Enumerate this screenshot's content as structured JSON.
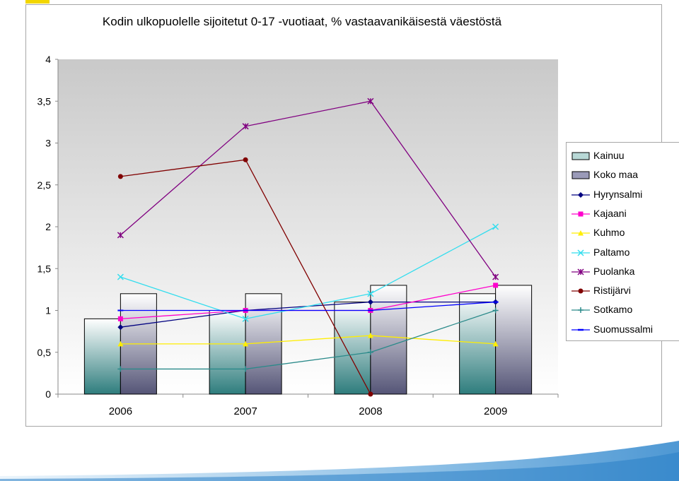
{
  "chart_data": {
    "type": "bar",
    "title": "Kodin ulkopuolelle sijoitetut 0-17 -vuotiaat, % vastaavanikäisestä väestöstä",
    "categories": [
      "2006",
      "2007",
      "2008",
      "2009"
    ],
    "ylim": [
      0,
      4
    ],
    "yticks": [
      "0",
      "0,5",
      "1",
      "1,5",
      "2",
      "2,5",
      "3",
      "3,5",
      "4"
    ],
    "legend_position": "right",
    "bar_series": [
      {
        "name": "Kainuu",
        "values": [
          0.9,
          1.0,
          1.1,
          1.2
        ],
        "color": "#2e7d7d"
      },
      {
        "name": "Koko maa",
        "values": [
          1.2,
          1.2,
          1.3,
          1.3
        ],
        "color": "#555577"
      }
    ],
    "line_series": [
      {
        "name": "Hyrynsalmi",
        "values": [
          0.8,
          1.0,
          1.1,
          1.1
        ],
        "color": "#000080",
        "marker": "diamond"
      },
      {
        "name": "Kajaani",
        "values": [
          0.9,
          1.0,
          1.0,
          1.3
        ],
        "color": "#ff00cc",
        "marker": "square"
      },
      {
        "name": "Kuhmo",
        "values": [
          0.6,
          0.6,
          0.7,
          0.6
        ],
        "color": "#ffee00",
        "marker": "triangle"
      },
      {
        "name": "Paltamo",
        "values": [
          1.4,
          0.9,
          1.2,
          2.0
        ],
        "color": "#33ddee",
        "marker": "x"
      },
      {
        "name": "Puolanka",
        "values": [
          1.9,
          3.2,
          3.5,
          1.4
        ],
        "color": "#800080",
        "marker": "star"
      },
      {
        "name": "Ristijärvi",
        "values": [
          2.6,
          2.8,
          0.0,
          null
        ],
        "color": "#800000",
        "marker": "circle"
      },
      {
        "name": "Sotkamo",
        "values": [
          0.3,
          0.3,
          0.5,
          1.0
        ],
        "color": "#2a8a8a",
        "marker": "plus"
      },
      {
        "name": "Suomussalmi",
        "values": [
          1.0,
          1.0,
          1.0,
          1.1
        ],
        "color": "#0000ff",
        "marker": "dash"
      }
    ]
  }
}
